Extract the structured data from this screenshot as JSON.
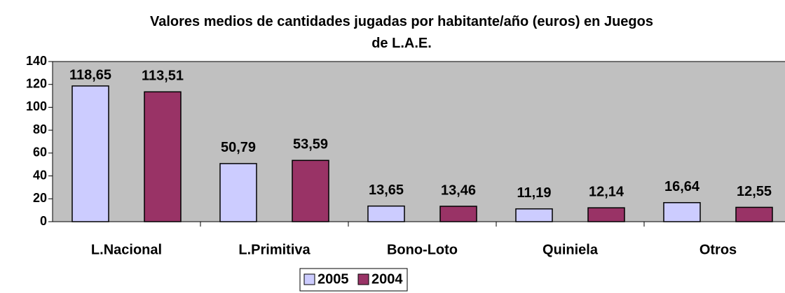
{
  "chart_data": {
    "type": "bar",
    "title": "Valores medios de cantidades jugadas por habitante/año (euros) en Juegos de L.A.E.",
    "categories": [
      "L.Nacional",
      "L.Primitiva",
      "Bono-Loto",
      "Quiniela",
      "Otros"
    ],
    "series": [
      {
        "name": "2005",
        "color": "#ccccff",
        "values": [
          118.65,
          50.79,
          13.65,
          11.19,
          16.64
        ],
        "value_labels": [
          "118,65",
          "50,79",
          "13,65",
          "11,19",
          "16,64"
        ]
      },
      {
        "name": "2004",
        "color": "#993366",
        "values": [
          113.51,
          53.59,
          13.46,
          12.14,
          12.55
        ],
        "value_labels": [
          "113,51",
          "53,59",
          "13,46",
          "12,14",
          "12,55"
        ]
      }
    ],
    "ylim": [
      0,
      140
    ],
    "yticks": [
      0,
      20,
      40,
      60,
      80,
      100,
      120,
      140
    ],
    "plot_background": "#c0c0c0",
    "legend": "bottom"
  }
}
